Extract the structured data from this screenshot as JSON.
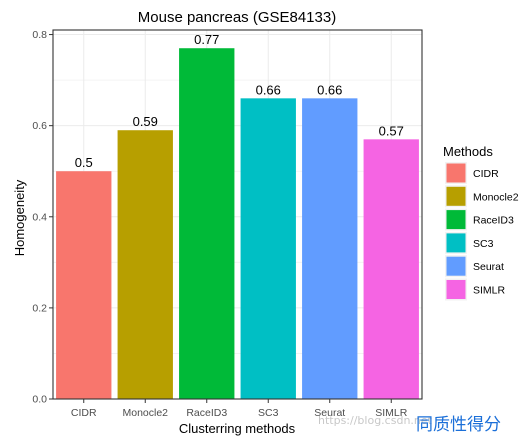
{
  "chart_data": {
    "type": "bar",
    "title": "Mouse pancreas (GSE84133)",
    "xlabel": "Clusterring methods",
    "ylabel": "Homogeneity",
    "categories": [
      "CIDR",
      "Monocle2",
      "RaceID3",
      "SC3",
      "Seurat",
      "SIMLR"
    ],
    "values": [
      0.5,
      0.59,
      0.77,
      0.66,
      0.66,
      0.57
    ],
    "data_labels": [
      "0.5",
      "0.59",
      "0.77",
      "0.66",
      "0.66",
      "0.57"
    ],
    "colors": [
      "#F8766D",
      "#B79F00",
      "#00BA38",
      "#00BFC4",
      "#619CFF",
      "#F564E3"
    ],
    "ylim": [
      0,
      0.8
    ],
    "yticks": [
      0.0,
      0.2,
      0.4,
      0.6,
      0.8
    ],
    "ytick_labels": [
      "0.0",
      "0.2",
      "0.4",
      "0.6",
      "0.8"
    ],
    "grid": true,
    "legend": {
      "title": "Methods",
      "position": "right",
      "items": [
        "CIDR",
        "Monocle2",
        "RaceID3",
        "SC3",
        "Seurat",
        "SIMLR"
      ]
    }
  },
  "watermark": {
    "url": "https://blog.csdn.net",
    "caption": "同质性得分"
  }
}
